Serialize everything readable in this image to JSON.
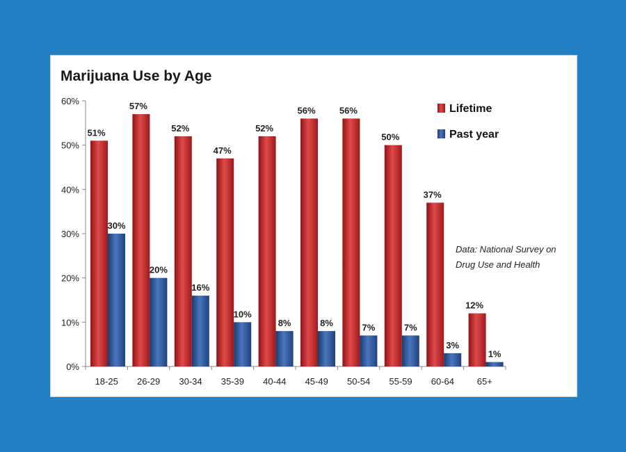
{
  "chart_data": {
    "type": "bar",
    "title": "Marijuana Use by Age",
    "categories": [
      "18-25",
      "26-29",
      "30-34",
      "35-39",
      "40-44",
      "45-49",
      "50-54",
      "55-59",
      "60-64",
      "65+"
    ],
    "series": [
      {
        "name": "Lifetime",
        "values": [
          51,
          57,
          52,
          47,
          52,
          56,
          56,
          50,
          37,
          12
        ],
        "labels": [
          "51%",
          "57%",
          "52%",
          "47%",
          "52%",
          "56%",
          "56%",
          "50%",
          "37%",
          "12%"
        ],
        "color": "#c0282a"
      },
      {
        "name": "Past year",
        "values": [
          30,
          20,
          16,
          10,
          8,
          8,
          7,
          7,
          3,
          1
        ],
        "labels": [
          "30%",
          "20%",
          "16%",
          "10%",
          "8%",
          "8%",
          "7%",
          "7%",
          "3%",
          "1%"
        ],
        "color": "#2d5597"
      }
    ],
    "yticks": [
      "0%",
      "10%",
      "20%",
      "30%",
      "40%",
      "50%",
      "60%"
    ],
    "ylim": [
      0,
      60
    ],
    "xlabel": "",
    "ylabel": "",
    "grid": false,
    "legend_position": "top-right",
    "annotation_lines": [
      "Data: National Survey on",
      "Drug Use and Health"
    ]
  }
}
